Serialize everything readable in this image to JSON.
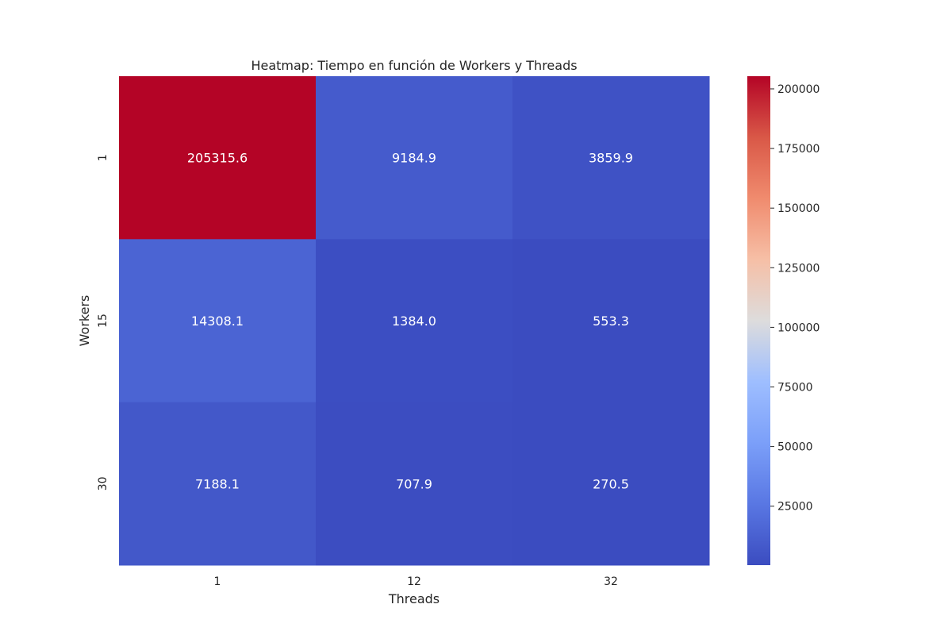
{
  "chart_data": {
    "type": "heatmap",
    "title": "Heatmap: Tiempo en función de Workers y Threads",
    "xlabel": "Threads",
    "ylabel": "Workers",
    "x_categories": [
      "1",
      "12",
      "32"
    ],
    "y_categories": [
      "1",
      "15",
      "30"
    ],
    "values": [
      [
        205315.6,
        9184.9,
        3859.9
      ],
      [
        14308.1,
        1384.0,
        553.3
      ],
      [
        7188.1,
        707.9,
        270.5
      ]
    ],
    "value_labels": [
      [
        "205315.6",
        "9184.9",
        "3859.9"
      ],
      [
        "14308.1",
        "1384.0",
        "553.3"
      ],
      [
        "7188.1",
        "707.9",
        "270.5"
      ]
    ],
    "colormap": "coolwarm",
    "color_range": [
      270.5,
      205315.6
    ],
    "colorbar_ticks": [
      25000,
      50000,
      75000,
      100000,
      125000,
      150000,
      175000,
      200000
    ],
    "colorbar_tick_labels": [
      "25000",
      "50000",
      "75000",
      "100000",
      "125000",
      "150000",
      "175000",
      "200000"
    ],
    "annotation_color": "#ffffff",
    "grid": false,
    "legend": "colorbar-right"
  }
}
